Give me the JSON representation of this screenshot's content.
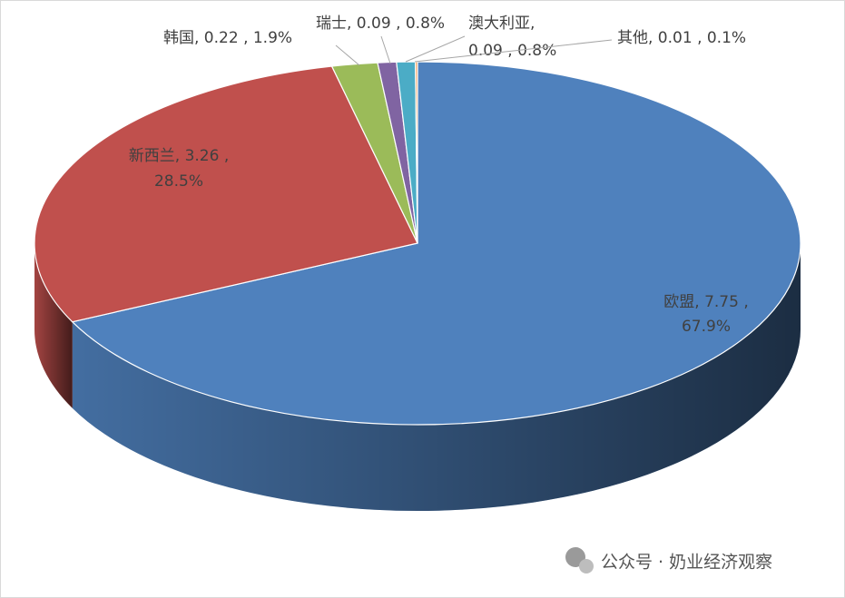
{
  "chart_data": {
    "type": "pie3d",
    "values": [
      7.75,
      3.26,
      0.22,
      0.09,
      0.09,
      0.01
    ],
    "value_labels": [
      [
        "欧盟, 7.75 ,",
        "67.9%"
      ],
      [
        "新西兰, 3.26 ,",
        "28.5%"
      ],
      [
        "韩国, 0.22 , 1.9%"
      ],
      [
        "瑞士, 0.09 , 0.8%"
      ],
      [
        "澳大利亚,",
        "0.09 , 0.8%"
      ],
      [
        "其他, 0.01 , 0.1%"
      ]
    ],
    "colors": [
      "#4f81bd",
      "#c0504d",
      "#9bbb59",
      "#8064a2",
      "#4bacc6",
      "#f79646"
    ]
  },
  "watermark": "公众号 · 奶业经济观察"
}
